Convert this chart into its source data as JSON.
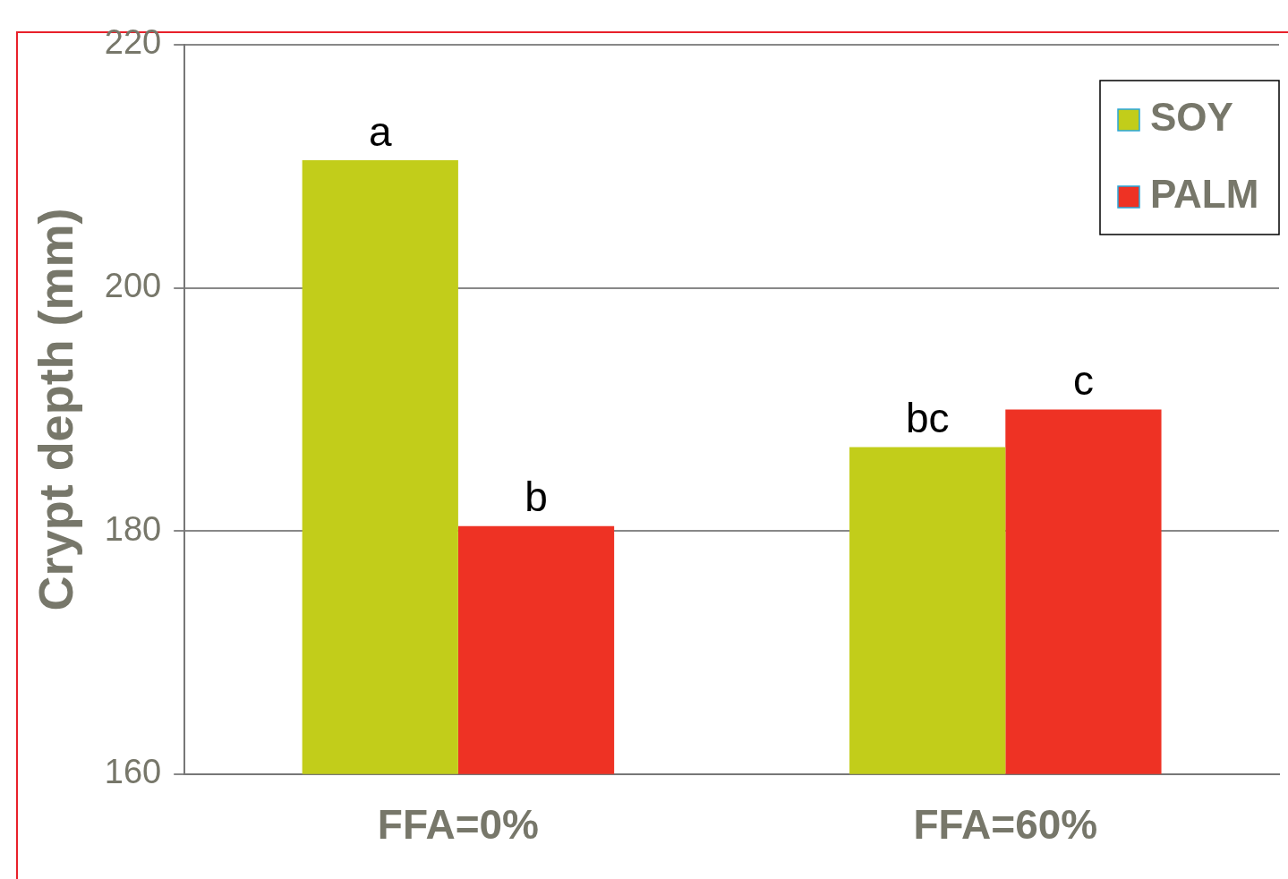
{
  "chart_data": {
    "type": "bar",
    "ylabel": "Crypt depth (mm)",
    "categories": [
      "FFA=0%",
      "FFA=60%"
    ],
    "series": [
      {
        "name": "SOY",
        "color": "#c2cd1a",
        "values": [
          210.5,
          186.9
        ]
      },
      {
        "name": "PALM",
        "color": "#ee3224",
        "values": [
          180.4,
          190.0
        ]
      }
    ],
    "ylim": [
      160,
      220
    ],
    "yticks": [
      160,
      180,
      200,
      220
    ],
    "grid": "y",
    "legend": "top right",
    "annotations": [
      {
        "text": "a",
        "x": "FFA=0%",
        "y": 210.5
      },
      {
        "text": "b",
        "x": "FFA=0%",
        "y": 180.4
      },
      {
        "text": "bc",
        "x": "FFA=60%",
        "y": 186.9
      },
      {
        "text": "c",
        "x": "FFA=60%",
        "y": 190.0
      }
    ]
  }
}
